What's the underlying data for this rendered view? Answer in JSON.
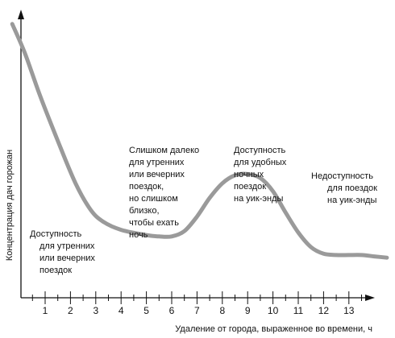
{
  "chart_data": {
    "type": "line",
    "xlabel": "Удаление от города, выраженное во времени, ч",
    "ylabel": "Концентрация дач горожан",
    "xlim": [
      0,
      14.5
    ],
    "ylim": [
      0,
      10
    ],
    "xticks": [
      "1",
      "2",
      "3",
      "4",
      "5",
      "6",
      "7",
      "8",
      "9",
      "10",
      "11",
      "12",
      "13"
    ],
    "series": [
      {
        "x": [
          -0.3,
          0.2,
          0.8,
          1.5,
          2.2,
          2.8,
          3.3,
          4.0,
          5.0,
          5.5,
          6.0,
          6.5,
          7.0,
          7.5,
          8.0,
          8.5,
          9.0,
          9.5,
          10.0,
          10.5,
          11.0,
          11.5,
          12.0,
          12.5,
          13.0,
          13.5,
          14.0,
          14.5
        ],
        "values": [
          9.4,
          8.3,
          6.7,
          5.0,
          3.4,
          2.4,
          1.95,
          1.65,
          1.45,
          1.4,
          1.4,
          1.6,
          2.15,
          2.85,
          3.4,
          3.7,
          3.75,
          3.6,
          3.1,
          2.3,
          1.55,
          1.0,
          0.75,
          0.7,
          0.7,
          0.7,
          0.65,
          0.6
        ]
      }
    ],
    "annotations": [
      {
        "lines": [
          "Доступность",
          "для утренних",
          "или вечерних",
          "поездок"
        ]
      },
      {
        "lines": [
          "Слишком далеко",
          "для утренних",
          "или вечерних",
          "поездок,",
          "но слишком",
          "близко,",
          "чтобы ехать",
          "ночь"
        ]
      },
      {
        "lines": [
          "Доступность",
          "для удобных",
          "ночных",
          "поездок",
          "на уик-энды"
        ]
      },
      {
        "lines": [
          "Недоступность",
          "для поездок",
          "на уик-энды"
        ]
      }
    ],
    "colors": {
      "curve": "#9a9a9a",
      "axis": "#111111"
    }
  }
}
